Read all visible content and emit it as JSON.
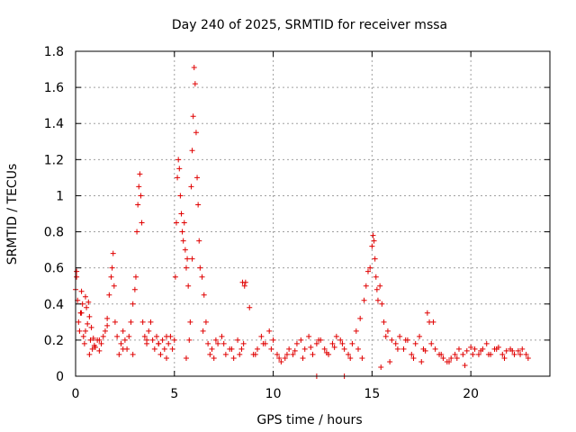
{
  "chart_data": {
    "type": "scatter",
    "title": "Day 240 of 2025, SRMTID for receiver mssa",
    "xlabel": "GPS time / hours",
    "ylabel": "SRMTID / TECUs",
    "xlim": [
      0,
      24
    ],
    "ylim": [
      0,
      1.8
    ],
    "xticks": [
      0,
      5,
      10,
      15,
      20
    ],
    "xtick_labels": [
      "0",
      "5",
      "10",
      "15",
      "20"
    ],
    "yticks": [
      0,
      0.2,
      0.4,
      0.6,
      0.8,
      1,
      1.2,
      1.4,
      1.6,
      1.8
    ],
    "ytick_labels": [
      "0",
      "0.2",
      "0.4",
      "0.6",
      "0.8",
      "1",
      "1.2",
      "1.4",
      "1.6",
      "1.8"
    ],
    "grid": true,
    "marker": "+",
    "color": "#e00000",
    "series": [
      {
        "name": "mssa",
        "x": [
          0.0,
          0.05,
          0.1,
          0.15,
          0.2,
          0.25,
          0.3,
          0.35,
          0.4,
          0.45,
          0.5,
          0.55,
          0.6,
          0.65,
          0.7,
          0.75,
          0.8,
          0.85,
          0.9,
          0.95,
          1.0,
          1.1,
          1.2,
          1.3,
          1.4,
          1.5,
          1.6,
          1.7,
          1.8,
          1.85,
          1.9,
          1.95,
          2.0,
          2.1,
          2.2,
          2.3,
          2.4,
          2.5,
          2.6,
          2.7,
          2.8,
          2.9,
          3.0,
          3.05,
          3.1,
          3.15,
          3.2,
          3.25,
          3.3,
          3.35,
          3.4,
          3.5,
          3.6,
          3.7,
          3.8,
          3.9,
          4.0,
          4.1,
          4.2,
          4.3,
          4.4,
          4.5,
          4.6,
          4.7,
          4.8,
          4.9,
          5.0,
          5.05,
          5.1,
          5.15,
          5.2,
          5.25,
          5.3,
          5.35,
          5.4,
          5.45,
          5.5,
          5.55,
          5.6,
          5.65,
          5.7,
          5.75,
          5.8,
          5.85,
          5.9,
          5.95,
          6.0,
          6.05,
          6.1,
          6.15,
          6.2,
          6.25,
          6.3,
          6.4,
          6.5,
          6.6,
          6.7,
          6.8,
          6.9,
          7.0,
          7.2,
          7.4,
          7.6,
          7.8,
          8.0,
          8.2,
          8.4,
          8.5,
          8.55,
          8.6,
          8.8,
          9.0,
          9.2,
          9.4,
          9.6,
          9.8,
          10.0,
          10.2,
          10.4,
          10.6,
          10.8,
          11.0,
          11.2,
          11.4,
          11.6,
          11.8,
          12.0,
          12.2,
          12.4,
          12.6,
          12.8,
          13.0,
          13.2,
          13.4,
          13.6,
          13.8,
          14.0,
          14.2,
          14.4,
          14.6,
          14.7,
          14.8,
          14.9,
          15.0,
          15.05,
          15.1,
          15.15,
          15.2,
          15.25,
          15.3,
          15.4,
          15.5,
          15.6,
          15.7,
          15.8,
          16.0,
          16.2,
          16.4,
          16.6,
          16.8,
          17.0,
          17.2,
          17.4,
          17.6,
          17.8,
          17.9,
          18.0,
          18.2,
          18.4,
          18.6,
          18.8,
          19.0,
          19.2,
          19.4,
          19.6,
          19.8,
          20.0,
          20.2,
          20.4,
          20.6,
          20.8,
          21.0,
          21.2,
          21.4,
          21.6,
          21.8,
          22.0,
          22.2,
          22.4,
          22.6,
          22.8,
          12.2,
          13.6,
          0.05,
          0.3,
          0.5,
          0.7,
          1.2,
          1.6,
          2.4,
          2.9,
          3.6,
          4.2,
          4.6,
          5.6,
          5.9,
          6.45,
          7.1,
          7.5,
          7.9,
          8.3,
          8.45,
          9.1,
          9.5,
          9.9,
          10.3,
          10.7,
          11.1,
          11.5,
          11.9,
          12.3,
          12.7,
          13.1,
          13.5,
          13.9,
          14.3,
          14.5,
          15.45,
          15.9,
          16.3,
          16.7,
          17.1,
          17.5,
          17.7,
          18.1,
          18.5,
          18.9,
          19.3,
          19.7,
          20.1,
          20.5,
          20.9,
          21.3,
          21.7,
          22.1,
          22.5,
          22.9
        ],
        "y": [
          0.48,
          0.55,
          0.42,
          0.3,
          0.25,
          0.35,
          0.47,
          0.4,
          0.22,
          0.18,
          0.44,
          0.38,
          0.29,
          0.41,
          0.33,
          0.2,
          0.27,
          0.15,
          0.21,
          0.17,
          0.16,
          0.2,
          0.14,
          0.18,
          0.22,
          0.25,
          0.32,
          0.45,
          0.55,
          0.6,
          0.68,
          0.5,
          0.3,
          0.22,
          0.12,
          0.18,
          0.25,
          0.2,
          0.15,
          0.22,
          0.3,
          0.4,
          0.48,
          0.55,
          0.8,
          0.95,
          1.05,
          1.12,
          1.0,
          0.85,
          0.3,
          0.22,
          0.18,
          0.25,
          0.3,
          0.2,
          0.15,
          0.22,
          0.18,
          0.12,
          0.2,
          0.15,
          0.1,
          0.18,
          0.22,
          0.15,
          0.2,
          0.55,
          0.85,
          1.1,
          1.2,
          1.15,
          1.0,
          0.9,
          0.8,
          0.75,
          0.85,
          0.7,
          0.6,
          0.65,
          0.5,
          0.2,
          0.3,
          1.05,
          1.25,
          1.44,
          1.71,
          1.62,
          1.35,
          1.1,
          0.95,
          0.75,
          0.6,
          0.55,
          0.45,
          0.3,
          0.18,
          0.12,
          0.15,
          0.1,
          0.18,
          0.22,
          0.12,
          0.15,
          0.1,
          0.2,
          0.15,
          0.18,
          0.5,
          0.52,
          0.38,
          0.12,
          0.15,
          0.22,
          0.18,
          0.25,
          0.2,
          0.12,
          0.08,
          0.1,
          0.15,
          0.12,
          0.18,
          0.2,
          0.15,
          0.22,
          0.12,
          0.18,
          0.2,
          0.15,
          0.12,
          0.18,
          0.22,
          0.2,
          0.15,
          0.12,
          0.18,
          0.25,
          0.32,
          0.42,
          0.5,
          0.58,
          0.6,
          0.72,
          0.78,
          0.75,
          0.65,
          0.55,
          0.48,
          0.42,
          0.5,
          0.4,
          0.3,
          0.22,
          0.25,
          0.2,
          0.18,
          0.22,
          0.15,
          0.2,
          0.12,
          0.18,
          0.22,
          0.15,
          0.35,
          0.3,
          0.18,
          0.15,
          0.12,
          0.1,
          0.08,
          0.1,
          0.12,
          0.15,
          0.12,
          0.14,
          0.16,
          0.15,
          0.12,
          0.15,
          0.18,
          0.12,
          0.15,
          0.16,
          0.12,
          0.14,
          0.15,
          0.12,
          0.14,
          0.15,
          0.12,
          0.0,
          0.0,
          0.58,
          0.35,
          0.25,
          0.12,
          0.2,
          0.28,
          0.15,
          0.12,
          0.2,
          0.18,
          0.22,
          0.1,
          0.65,
          0.25,
          0.2,
          0.18,
          0.15,
          0.12,
          0.52,
          0.12,
          0.18,
          0.15,
          0.1,
          0.12,
          0.14,
          0.1,
          0.16,
          0.2,
          0.13,
          0.16,
          0.18,
          0.1,
          0.15,
          0.1,
          0.05,
          0.08,
          0.15,
          0.2,
          0.1,
          0.08,
          0.14,
          0.3,
          0.12,
          0.08,
          0.1,
          0.06,
          0.12,
          0.14,
          0.12,
          0.15,
          0.1,
          0.14,
          0.12,
          0.1
        ]
      }
    ]
  }
}
